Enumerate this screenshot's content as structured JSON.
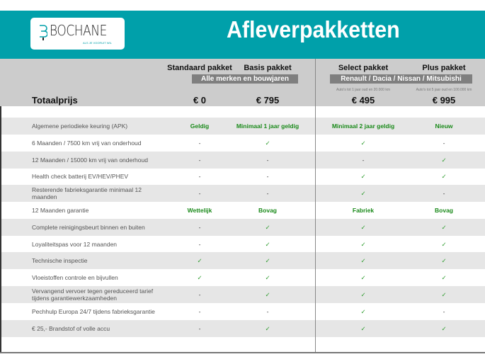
{
  "header": {
    "logo": {
      "name": "BOCHANE",
      "tagline": "ALS JE VOORUIT WIL"
    },
    "title": "Afleverpakketten",
    "color": "#00a0aa"
  },
  "packages": [
    {
      "name": "Standaard pakket",
      "price": "€ 0",
      "note": ""
    },
    {
      "name": "Basis pakket",
      "price": "€ 795",
      "note": ""
    },
    {
      "name": "Select pakket",
      "price": "€ 495",
      "note": "Auto's tot 1 jaar oud en 20.000 km"
    },
    {
      "name": "Plus pakket",
      "price": "€ 995",
      "note": "Auto's tot 5 jaar oud en 100.000 km"
    }
  ],
  "bands": {
    "left": "Alle merken en bouwjaren",
    "right": "Renault / Dacia / Nissan / Mitsubishi"
  },
  "total_label": "Totaalprijs",
  "rows": [
    {
      "label": "Algemene periodieke keuring (APK)",
      "values": [
        "Geldig",
        "Minimaal 1 jaar geldig",
        "Minimaal 2 jaar geldig",
        "Nieuw"
      ]
    },
    {
      "label": "6 Maanden / 7500 km vrij van onderhoud",
      "values": [
        "-",
        "✓",
        "✓",
        "-"
      ]
    },
    {
      "label": "12 Maanden / 15000 km vrij van onderhoud",
      "values": [
        "-",
        "-",
        "-",
        "✓"
      ]
    },
    {
      "label": "Health check batterij EV/HEV/PHEV",
      "values": [
        "-",
        "-",
        "✓",
        "✓"
      ]
    },
    {
      "label": "Resterende fabrieksgarantie minimaal 12 maanden",
      "values": [
        "-",
        "-",
        "✓",
        "-"
      ]
    },
    {
      "label": "12 Maanden  garantie",
      "values": [
        "Wettelijk",
        "Bovag",
        "Fabriek",
        "Bovag"
      ]
    },
    {
      "label": "Complete reinigingsbeurt binnen en buiten",
      "values": [
        "-",
        "✓",
        "✓",
        "✓"
      ]
    },
    {
      "label": "Loyaliteitspas voor 12 maanden",
      "values": [
        "-",
        "✓",
        "✓",
        "✓"
      ]
    },
    {
      "label": "Technische inspectie",
      "values": [
        "✓",
        "✓",
        "✓",
        "✓"
      ]
    },
    {
      "label": "Vloeistoffen controle en bijvullen",
      "values": [
        "✓",
        "✓",
        "✓",
        "✓"
      ]
    },
    {
      "label": "Vervangend vervoer tegen gereduceerd tarief tijdens garantiewerkzaamheden",
      "values": [
        "-",
        "✓",
        "✓",
        "✓"
      ]
    },
    {
      "label": "Pechhulp Europa 24/7 tijdens fabrieksgarantie",
      "values": [
        "-",
        "-",
        "✓",
        "-"
      ]
    },
    {
      "label": "€ 25,- Brandstof of  volle accu",
      "values": [
        "-",
        "✓",
        "✓",
        "✓"
      ]
    }
  ]
}
